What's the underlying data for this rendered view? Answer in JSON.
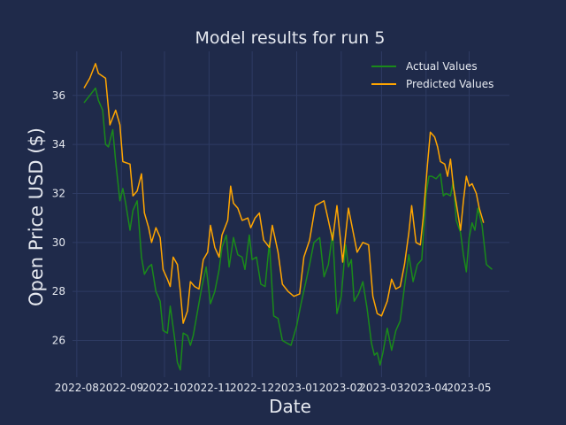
{
  "page": {
    "background": "#1f2a4a"
  },
  "chart_data": {
    "type": "line",
    "title": "Model results for run 5",
    "xlabel": "Date",
    "ylabel": "Open Price USD ($)",
    "x_axis": "date",
    "xlim": [
      "2022-07-29",
      "2023-05-29"
    ],
    "ylim": [
      24.5,
      37.8
    ],
    "xticks": [
      "2022-08",
      "2022-09",
      "2022-10",
      "2022-11",
      "2022-12",
      "2023-01",
      "2023-02",
      "2023-03",
      "2023-04",
      "2023-05"
    ],
    "yticks": [
      26,
      28,
      30,
      32,
      34,
      36
    ],
    "grid": true,
    "legend": "top-right",
    "colors": {
      "plot_bg": "#1f2a4a",
      "grid": "#2e3b63",
      "text": "#e6e9f0"
    },
    "series": [
      {
        "name": "Actual Values",
        "color": "#1a8a1a",
        "points": [
          [
            "2022-08-06",
            35.7
          ],
          [
            "2022-08-10",
            36.0
          ],
          [
            "2022-08-14",
            36.3
          ],
          [
            "2022-08-16",
            35.8
          ],
          [
            "2022-08-19",
            35.4
          ],
          [
            "2022-08-21",
            34.0
          ],
          [
            "2022-08-23",
            33.9
          ],
          [
            "2022-08-26",
            34.6
          ],
          [
            "2022-08-28",
            33.3
          ],
          [
            "2022-08-31",
            31.7
          ],
          [
            "2022-09-02",
            32.2
          ],
          [
            "2022-09-04",
            31.6
          ],
          [
            "2022-09-07",
            30.5
          ],
          [
            "2022-09-09",
            31.3
          ],
          [
            "2022-09-12",
            31.7
          ],
          [
            "2022-09-15",
            29.4
          ],
          [
            "2022-09-17",
            28.7
          ],
          [
            "2022-09-20",
            29.0
          ],
          [
            "2022-09-22",
            29.1
          ],
          [
            "2022-09-25",
            28.0
          ],
          [
            "2022-09-28",
            27.6
          ],
          [
            "2022-09-30",
            26.4
          ],
          [
            "2022-10-03",
            26.3
          ],
          [
            "2022-10-05",
            27.4
          ],
          [
            "2022-10-08",
            26.1
          ],
          [
            "2022-10-10",
            25.1
          ],
          [
            "2022-10-12",
            24.8
          ],
          [
            "2022-10-14",
            26.3
          ],
          [
            "2022-10-17",
            26.2
          ],
          [
            "2022-10-19",
            25.8
          ],
          [
            "2022-10-21",
            26.2
          ],
          [
            "2022-10-24",
            27.2
          ],
          [
            "2022-10-27",
            28.2
          ],
          [
            "2022-10-30",
            29.0
          ],
          [
            "2022-11-02",
            27.5
          ],
          [
            "2022-11-05",
            28.0
          ],
          [
            "2022-11-08",
            28.9
          ],
          [
            "2022-11-10",
            29.8
          ],
          [
            "2022-11-13",
            30.3
          ],
          [
            "2022-11-15",
            29.0
          ],
          [
            "2022-11-18",
            30.2
          ],
          [
            "2022-11-21",
            29.5
          ],
          [
            "2022-11-24",
            29.4
          ],
          [
            "2022-11-26",
            28.9
          ],
          [
            "2022-11-29",
            30.3
          ],
          [
            "2022-12-01",
            29.3
          ],
          [
            "2022-12-04",
            29.4
          ],
          [
            "2022-12-07",
            28.3
          ],
          [
            "2022-12-10",
            28.2
          ],
          [
            "2022-12-13",
            30.0
          ],
          [
            "2022-12-16",
            27.0
          ],
          [
            "2022-12-19",
            26.9
          ],
          [
            "2022-12-22",
            26.0
          ],
          [
            "2022-12-25",
            25.9
          ],
          [
            "2022-12-28",
            25.8
          ],
          [
            "2023-01-01",
            26.6
          ],
          [
            "2023-01-04",
            27.5
          ],
          [
            "2023-01-07",
            28.3
          ],
          [
            "2023-01-10",
            29.1
          ],
          [
            "2023-01-13",
            30.0
          ],
          [
            "2023-01-17",
            30.2
          ],
          [
            "2023-01-20",
            28.6
          ],
          [
            "2023-01-23",
            29.1
          ],
          [
            "2023-01-26",
            30.4
          ],
          [
            "2023-01-29",
            27.1
          ],
          [
            "2023-02-01",
            27.8
          ],
          [
            "2023-02-04",
            29.9
          ],
          [
            "2023-02-06",
            29.0
          ],
          [
            "2023-02-08",
            29.3
          ],
          [
            "2023-02-10",
            27.6
          ],
          [
            "2023-02-13",
            27.9
          ],
          [
            "2023-02-16",
            28.4
          ],
          [
            "2023-02-19",
            27.3
          ],
          [
            "2023-02-22",
            25.9
          ],
          [
            "2023-02-24",
            25.4
          ],
          [
            "2023-02-26",
            25.5
          ],
          [
            "2023-02-28",
            25.0
          ],
          [
            "2023-03-02",
            25.5
          ],
          [
            "2023-03-05",
            26.5
          ],
          [
            "2023-03-08",
            25.6
          ],
          [
            "2023-03-11",
            26.4
          ],
          [
            "2023-03-14",
            26.8
          ],
          [
            "2023-03-17",
            28.2
          ],
          [
            "2023-03-20",
            29.5
          ],
          [
            "2023-03-23",
            28.4
          ],
          [
            "2023-03-26",
            29.1
          ],
          [
            "2023-03-29",
            29.3
          ],
          [
            "2023-04-01",
            32.0
          ],
          [
            "2023-04-03",
            32.7
          ],
          [
            "2023-04-05",
            32.7
          ],
          [
            "2023-04-08",
            32.6
          ],
          [
            "2023-04-11",
            32.8
          ],
          [
            "2023-04-13",
            31.9
          ],
          [
            "2023-04-15",
            32.0
          ],
          [
            "2023-04-18",
            31.9
          ],
          [
            "2023-04-20",
            32.5
          ],
          [
            "2023-04-22",
            30.9
          ],
          [
            "2023-04-25",
            30.4
          ],
          [
            "2023-04-27",
            29.5
          ],
          [
            "2023-04-29",
            28.8
          ],
          [
            "2023-05-01",
            30.2
          ],
          [
            "2023-05-03",
            30.8
          ],
          [
            "2023-05-05",
            30.5
          ],
          [
            "2023-05-07",
            31.4
          ],
          [
            "2023-05-10",
            30.7
          ],
          [
            "2023-05-13",
            29.1
          ],
          [
            "2023-05-17",
            28.9
          ]
        ]
      },
      {
        "name": "Predicted Values",
        "color": "#ffa500",
        "points": [
          [
            "2022-08-06",
            36.3
          ],
          [
            "2022-08-10",
            36.7
          ],
          [
            "2022-08-14",
            37.3
          ],
          [
            "2022-08-16",
            36.9
          ],
          [
            "2022-08-21",
            36.7
          ],
          [
            "2022-08-24",
            34.8
          ],
          [
            "2022-08-28",
            35.4
          ],
          [
            "2022-08-31",
            34.8
          ],
          [
            "2022-09-02",
            33.3
          ],
          [
            "2022-09-07",
            33.2
          ],
          [
            "2022-09-09",
            31.9
          ],
          [
            "2022-09-12",
            32.1
          ],
          [
            "2022-09-15",
            32.8
          ],
          [
            "2022-09-17",
            31.2
          ],
          [
            "2022-09-20",
            30.6
          ],
          [
            "2022-09-22",
            30.0
          ],
          [
            "2022-09-25",
            30.6
          ],
          [
            "2022-09-28",
            30.2
          ],
          [
            "2022-09-30",
            28.9
          ],
          [
            "2022-10-03",
            28.5
          ],
          [
            "2022-10-05",
            28.2
          ],
          [
            "2022-10-07",
            29.4
          ],
          [
            "2022-10-10",
            29.1
          ],
          [
            "2022-10-12",
            28.0
          ],
          [
            "2022-10-14",
            26.7
          ],
          [
            "2022-10-17",
            27.2
          ],
          [
            "2022-10-19",
            28.4
          ],
          [
            "2022-10-22",
            28.2
          ],
          [
            "2022-10-25",
            28.1
          ],
          [
            "2022-10-28",
            29.3
          ],
          [
            "2022-10-31",
            29.6
          ],
          [
            "2022-11-02",
            30.7
          ],
          [
            "2022-11-05",
            29.8
          ],
          [
            "2022-11-08",
            29.4
          ],
          [
            "2022-11-10",
            30.3
          ],
          [
            "2022-11-14",
            30.9
          ],
          [
            "2022-11-16",
            32.3
          ],
          [
            "2022-11-18",
            31.6
          ],
          [
            "2022-11-21",
            31.4
          ],
          [
            "2022-11-24",
            30.9
          ],
          [
            "2022-11-28",
            31.0
          ],
          [
            "2022-11-30",
            30.6
          ],
          [
            "2022-12-03",
            31.0
          ],
          [
            "2022-12-06",
            31.2
          ],
          [
            "2022-12-09",
            30.1
          ],
          [
            "2022-12-13",
            29.8
          ],
          [
            "2022-12-15",
            30.7
          ],
          [
            "2022-12-19",
            29.6
          ],
          [
            "2022-12-22",
            28.3
          ],
          [
            "2022-12-26",
            28.0
          ],
          [
            "2022-12-30",
            27.8
          ],
          [
            "2023-01-03",
            27.9
          ],
          [
            "2023-01-06",
            29.4
          ],
          [
            "2023-01-10",
            30.1
          ],
          [
            "2023-01-14",
            31.5
          ],
          [
            "2023-01-17",
            31.6
          ],
          [
            "2023-01-20",
            31.7
          ],
          [
            "2023-01-23",
            30.9
          ],
          [
            "2023-01-26",
            30.1
          ],
          [
            "2023-01-29",
            31.5
          ],
          [
            "2023-02-02",
            29.2
          ],
          [
            "2023-02-06",
            31.4
          ],
          [
            "2023-02-09",
            30.5
          ],
          [
            "2023-02-12",
            29.6
          ],
          [
            "2023-02-16",
            30.0
          ],
          [
            "2023-02-20",
            29.9
          ],
          [
            "2023-02-23",
            27.8
          ],
          [
            "2023-02-26",
            27.1
          ],
          [
            "2023-03-01",
            27.0
          ],
          [
            "2023-03-05",
            27.6
          ],
          [
            "2023-03-08",
            28.5
          ],
          [
            "2023-03-11",
            28.1
          ],
          [
            "2023-03-14",
            28.2
          ],
          [
            "2023-03-17",
            29.1
          ],
          [
            "2023-03-20",
            30.4
          ],
          [
            "2023-03-22",
            31.5
          ],
          [
            "2023-03-25",
            30.0
          ],
          [
            "2023-03-28",
            29.9
          ],
          [
            "2023-03-30",
            31.0
          ],
          [
            "2023-04-02",
            33.2
          ],
          [
            "2023-04-04",
            34.5
          ],
          [
            "2023-04-07",
            34.3
          ],
          [
            "2023-04-09",
            33.9
          ],
          [
            "2023-04-11",
            33.3
          ],
          [
            "2023-04-14",
            33.2
          ],
          [
            "2023-04-16",
            32.7
          ],
          [
            "2023-04-18",
            33.4
          ],
          [
            "2023-04-20",
            32.3
          ],
          [
            "2023-04-22",
            31.6
          ],
          [
            "2023-04-25",
            30.5
          ],
          [
            "2023-04-27",
            31.7
          ],
          [
            "2023-04-29",
            32.7
          ],
          [
            "2023-05-01",
            32.3
          ],
          [
            "2023-05-03",
            32.4
          ],
          [
            "2023-05-06",
            32.0
          ],
          [
            "2023-05-08",
            31.4
          ],
          [
            "2023-05-11",
            30.8
          ]
        ]
      }
    ]
  }
}
